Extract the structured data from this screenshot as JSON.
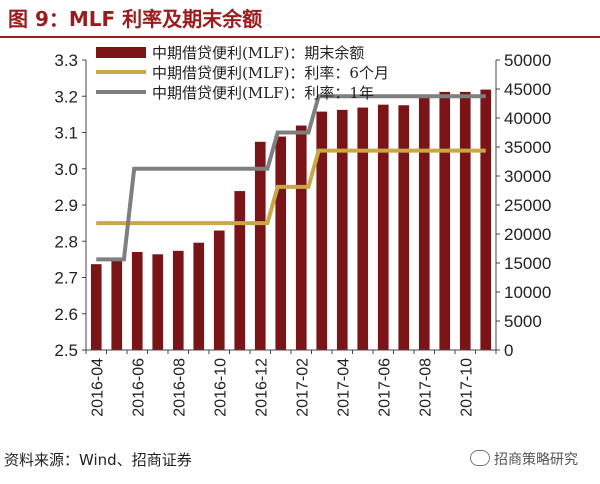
{
  "header": {
    "title": "图 9：MLF 利率及期末余额"
  },
  "footer": {
    "source": "资料来源：Wind、招商证券",
    "watermark": "招商策略研究"
  },
  "chart_data": {
    "type": "bar",
    "categories": [
      "2016-04",
      "2016-05",
      "2016-06",
      "2016-07",
      "2016-08",
      "2016-09",
      "2016-10",
      "2016-11",
      "2016-12",
      "2017-01",
      "2017-02",
      "2017-03",
      "2017-04",
      "2017-05",
      "2017-06",
      "2017-07",
      "2017-08",
      "2017-09",
      "2017-10",
      "2017-11"
    ],
    "x_tick_labels": [
      "2016-04",
      "2016-06",
      "2016-08",
      "2016-10",
      "2016-12",
      "2017-02",
      "2017-04",
      "2017-06",
      "2017-08",
      "2017-10"
    ],
    "left_axis": {
      "ylim": [
        2.5,
        3.3
      ],
      "ticks": [
        "2.5",
        "2.6",
        "2.7",
        "2.8",
        "2.9",
        "3.0",
        "3.1",
        "3.2",
        "3.3"
      ]
    },
    "right_axis": {
      "ylim": [
        0,
        50000
      ],
      "ticks": [
        "0",
        "5000",
        "10000",
        "15000",
        "20000",
        "25000",
        "30000",
        "35000",
        "40000",
        "45000",
        "50000"
      ]
    },
    "series": [
      {
        "name": "中期借贷便利(MLF)：期末余额",
        "type": "bar",
        "axis": "right",
        "color": "#7b1416",
        "values": [
          14800,
          15800,
          16900,
          16500,
          17100,
          18500,
          20600,
          27400,
          35900,
          36800,
          38700,
          41100,
          41400,
          41800,
          42300,
          42200,
          43800,
          44500,
          44500,
          44900
        ]
      },
      {
        "name": "中期借贷便利(MLF)：利率：6个月",
        "type": "line",
        "axis": "left",
        "color": "#c9a646",
        "values": [
          2.85,
          2.85,
          2.85,
          2.85,
          2.85,
          2.85,
          2.85,
          2.85,
          2.85,
          2.95,
          2.95,
          3.05,
          3.05,
          3.05,
          3.05,
          3.05,
          3.05,
          3.05,
          3.05,
          3.05
        ]
      },
      {
        "name": "中期借贷便利(MLF)：利率：1年",
        "type": "line",
        "axis": "left",
        "color": "#7f7f7f",
        "values": [
          2.75,
          2.75,
          3.0,
          3.0,
          3.0,
          3.0,
          3.0,
          3.0,
          3.0,
          3.1,
          3.1,
          3.2,
          3.2,
          3.2,
          3.2,
          3.2,
          3.2,
          3.2,
          3.2,
          3.2
        ]
      }
    ],
    "legend_position": "top-left",
    "grid": false
  }
}
